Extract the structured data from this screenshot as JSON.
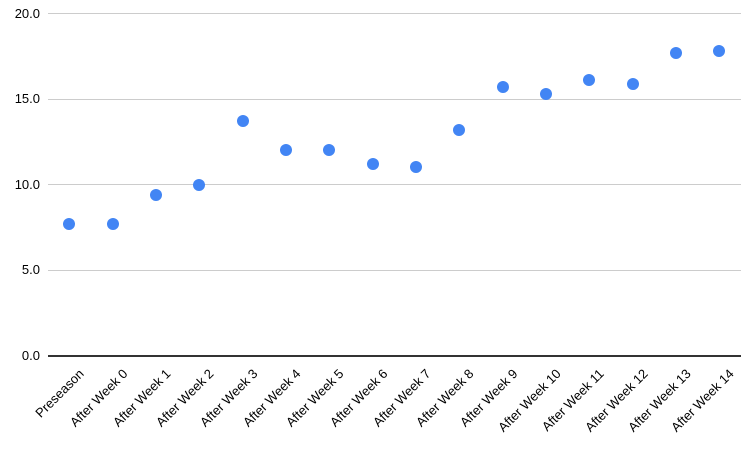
{
  "chart_data": {
    "type": "scatter",
    "title": "",
    "xlabel": "",
    "ylabel": "",
    "categories": [
      "Preseason",
      "After Week 0",
      "After Week 1",
      "After Week 2",
      "After Week 3",
      "After Week 4",
      "After Week 5",
      "After Week 6",
      "After Week 7",
      "After Week 8",
      "After Week 9",
      "After Week 10",
      "After Week 11",
      "After Week 12",
      "After Week 13",
      "After Week 14"
    ],
    "values": [
      7.7,
      7.7,
      9.4,
      10.0,
      13.7,
      12.0,
      12.0,
      11.2,
      11.0,
      13.2,
      15.7,
      15.3,
      16.1,
      15.9,
      17.7,
      17.8
    ],
    "ylim": [
      0,
      20
    ],
    "yticks": [
      0,
      5,
      10,
      15,
      20
    ],
    "ytick_labels": [
      "0.0",
      "5.0",
      "10.0",
      "15.0",
      "20.0"
    ],
    "grid": true,
    "legend": "none",
    "x_label_rotation_deg": -45,
    "colors": {
      "point": "#4285f4",
      "gridline": "#cccccc",
      "axis_line": "#333333",
      "label_text": "#000000",
      "background": "#ffffff"
    }
  }
}
